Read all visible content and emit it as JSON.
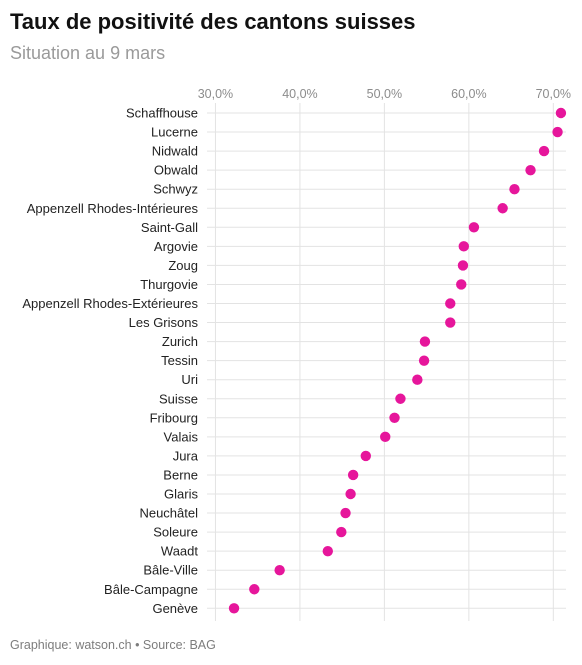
{
  "header": {
    "title": "Taux de positivité des cantons suisses",
    "subtitle": "Situation au 9 mars"
  },
  "footer": {
    "credit": "Graphique: watson.ch • Source: BAG"
  },
  "colors": {
    "dot": "#e6169b",
    "grid": "#e3e3e3"
  },
  "chart_data": {
    "type": "scatter",
    "title": "Taux de positivité des cantons suisses",
    "subtitle": "Situation au 9 mars",
    "xlabel": "",
    "ylabel": "",
    "x_axis_position": "top",
    "xlim": [
      29,
      71.5
    ],
    "x_ticks": [
      30,
      40,
      50,
      60,
      70
    ],
    "x_tick_labels": [
      "30,0%",
      "40,0%",
      "50,0%",
      "60,0%",
      "70,0%"
    ],
    "grid": true,
    "categories": [
      "Schaffhouse",
      "Lucerne",
      "Nidwald",
      "Obwald",
      "Schwyz",
      "Appenzell Rhodes-Intérieures",
      "Saint-Gall",
      "Argovie",
      "Zoug",
      "Thurgovie",
      "Appenzell Rhodes-Extérieures",
      "Les Grisons",
      "Zurich",
      "Tessin",
      "Uri",
      "Suisse",
      "Fribourg",
      "Valais",
      "Jura",
      "Berne",
      "Glaris",
      "Neuchâtel",
      "Soleure",
      "Waadt",
      "Bâle-Ville",
      "Bâle-Campagne",
      "Genève"
    ],
    "values": [
      70.9,
      70.5,
      68.9,
      67.3,
      65.4,
      64.0,
      60.6,
      59.4,
      59.3,
      59.1,
      57.8,
      57.8,
      54.8,
      54.7,
      53.9,
      51.9,
      51.2,
      50.1,
      47.8,
      46.3,
      46.0,
      45.4,
      44.9,
      43.3,
      37.6,
      34.6,
      32.2
    ]
  }
}
